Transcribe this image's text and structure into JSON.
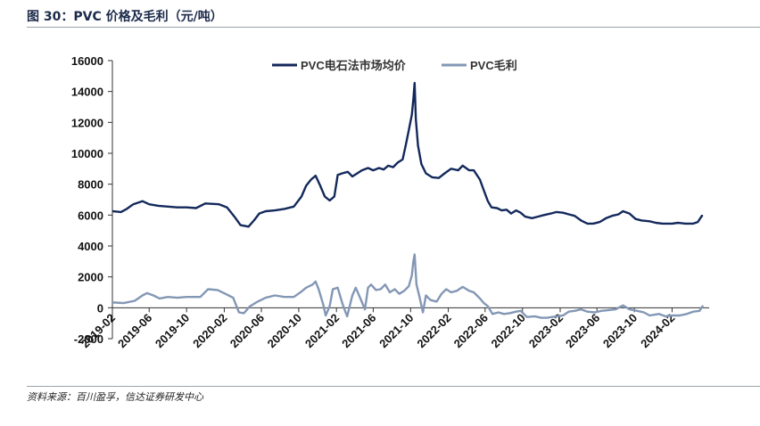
{
  "figure": {
    "title": "图 30：PVC 价格及毛利（元/吨）",
    "source": "资料来源：百川盈孚，信达证券研发中心"
  },
  "colors": {
    "price": "#13295b",
    "margin": "#8397b5",
    "axis": "#333333"
  },
  "chart_data": {
    "type": "line",
    "title": "",
    "xlabel": "",
    "ylabel": "",
    "ylim": [
      -2000,
      16000
    ],
    "yticks": [
      "-2000",
      "0",
      "2000",
      "4000",
      "6000",
      "8000",
      "10000",
      "12000",
      "14000",
      "16000"
    ],
    "xlim": [
      "2019-02",
      "2024-06"
    ],
    "xticks": [
      "2019-02",
      "2019-06",
      "2019-10",
      "2020-02",
      "2020-06",
      "2020-10",
      "2021-02",
      "2021-06",
      "2021-10",
      "2022-02",
      "2022-06",
      "2022-10",
      "2023-02",
      "2023-06",
      "2023-10",
      "2024-02"
    ],
    "legend": "top-center",
    "series": [
      {
        "name": "PVC电石法市场均价",
        "points": [
          [
            "2019-02-01",
            6250
          ],
          [
            "2019-03-01",
            6200
          ],
          [
            "2019-03-20",
            6400
          ],
          [
            "2019-04-10",
            6700
          ],
          [
            "2019-05-10",
            6900
          ],
          [
            "2019-06-01",
            6700
          ],
          [
            "2019-07-01",
            6600
          ],
          [
            "2019-08-01",
            6550
          ],
          [
            "2019-09-01",
            6500
          ],
          [
            "2019-10-01",
            6500
          ],
          [
            "2019-11-01",
            6450
          ],
          [
            "2019-12-01",
            6750
          ],
          [
            "2020-01-15",
            6700
          ],
          [
            "2020-02-10",
            6500
          ],
          [
            "2020-03-05",
            5900
          ],
          [
            "2020-03-25",
            5350
          ],
          [
            "2020-04-20",
            5250
          ],
          [
            "2020-05-10",
            5700
          ],
          [
            "2020-05-25",
            6100
          ],
          [
            "2020-06-15",
            6250
          ],
          [
            "2020-07-15",
            6300
          ],
          [
            "2020-08-15",
            6400
          ],
          [
            "2020-09-15",
            6550
          ],
          [
            "2020-10-10",
            7200
          ],
          [
            "2020-10-25",
            7900
          ],
          [
            "2020-11-10",
            8300
          ],
          [
            "2020-11-25",
            8550
          ],
          [
            "2020-12-10",
            7900
          ],
          [
            "2020-12-25",
            7200
          ],
          [
            "2021-01-10",
            6950
          ],
          [
            "2021-01-25",
            7200
          ],
          [
            "2021-02-05",
            8600
          ],
          [
            "2021-02-20",
            8700
          ],
          [
            "2021-03-10",
            8800
          ],
          [
            "2021-03-25",
            8500
          ],
          [
            "2021-04-10",
            8700
          ],
          [
            "2021-04-25",
            8900
          ],
          [
            "2021-05-15",
            9050
          ],
          [
            "2021-06-01",
            8900
          ],
          [
            "2021-06-20",
            9050
          ],
          [
            "2021-07-05",
            8950
          ],
          [
            "2021-07-20",
            9200
          ],
          [
            "2021-08-05",
            9100
          ],
          [
            "2021-08-20",
            9400
          ],
          [
            "2021-09-05",
            9600
          ],
          [
            "2021-09-15",
            10500
          ],
          [
            "2021-09-25",
            11500
          ],
          [
            "2021-10-05",
            12500
          ],
          [
            "2021-10-10",
            13500
          ],
          [
            "2021-10-14",
            14550
          ],
          [
            "2021-10-18",
            12200
          ],
          [
            "2021-10-25",
            10500
          ],
          [
            "2021-11-05",
            9300
          ],
          [
            "2021-11-20",
            8700
          ],
          [
            "2021-12-10",
            8450
          ],
          [
            "2022-01-01",
            8400
          ],
          [
            "2022-01-20",
            8700
          ],
          [
            "2022-02-10",
            9000
          ],
          [
            "2022-03-05",
            8900
          ],
          [
            "2022-03-20",
            9200
          ],
          [
            "2022-04-10",
            8900
          ],
          [
            "2022-04-25",
            8900
          ],
          [
            "2022-05-15",
            8300
          ],
          [
            "2022-05-28",
            7600
          ],
          [
            "2022-06-10",
            6900
          ],
          [
            "2022-06-22",
            6500
          ],
          [
            "2022-07-10",
            6450
          ],
          [
            "2022-07-25",
            6300
          ],
          [
            "2022-08-10",
            6350
          ],
          [
            "2022-08-25",
            6100
          ],
          [
            "2022-09-10",
            6300
          ],
          [
            "2022-09-25",
            6150
          ],
          [
            "2022-10-10",
            5900
          ],
          [
            "2022-11-01",
            5800
          ],
          [
            "2022-11-20",
            5900
          ],
          [
            "2022-12-10",
            6000
          ],
          [
            "2023-01-01",
            6100
          ],
          [
            "2023-01-20",
            6200
          ],
          [
            "2023-02-10",
            6150
          ],
          [
            "2023-03-01",
            6050
          ],
          [
            "2023-03-20",
            5950
          ],
          [
            "2023-04-10",
            5650
          ],
          [
            "2023-05-01",
            5450
          ],
          [
            "2023-05-20",
            5450
          ],
          [
            "2023-06-10",
            5550
          ],
          [
            "2023-07-01",
            5800
          ],
          [
            "2023-07-20",
            5950
          ],
          [
            "2023-08-10",
            6050
          ],
          [
            "2023-08-25",
            6250
          ],
          [
            "2023-09-15",
            6100
          ],
          [
            "2023-10-05",
            5750
          ],
          [
            "2023-10-25",
            5650
          ],
          [
            "2023-11-20",
            5600
          ],
          [
            "2023-12-10",
            5500
          ],
          [
            "2024-01-01",
            5450
          ],
          [
            "2024-02-01",
            5450
          ],
          [
            "2024-02-20",
            5500
          ],
          [
            "2024-03-15",
            5450
          ],
          [
            "2024-04-10",
            5450
          ],
          [
            "2024-04-25",
            5550
          ],
          [
            "2024-05-08",
            5950
          ],
          [
            "2024-05-12",
            5950
          ]
        ]
      },
      {
        "name": "PVC毛利",
        "points": [
          [
            "2019-02-01",
            350
          ],
          [
            "2019-03-10",
            300
          ],
          [
            "2019-04-15",
            450
          ],
          [
            "2019-05-10",
            800
          ],
          [
            "2019-05-25",
            950
          ],
          [
            "2019-06-15",
            800
          ],
          [
            "2019-07-05",
            600
          ],
          [
            "2019-08-01",
            700
          ],
          [
            "2019-09-01",
            650
          ],
          [
            "2019-10-01",
            700
          ],
          [
            "2019-11-15",
            700
          ],
          [
            "2019-12-10",
            1200
          ],
          [
            "2020-01-10",
            1150
          ],
          [
            "2020-02-10",
            850
          ],
          [
            "2020-03-01",
            650
          ],
          [
            "2020-03-20",
            -300
          ],
          [
            "2020-04-05",
            -350
          ],
          [
            "2020-04-25",
            100
          ],
          [
            "2020-05-20",
            400
          ],
          [
            "2020-06-15",
            650
          ],
          [
            "2020-07-15",
            800
          ],
          [
            "2020-08-15",
            700
          ],
          [
            "2020-09-15",
            700
          ],
          [
            "2020-10-10",
            1050
          ],
          [
            "2020-10-25",
            1300
          ],
          [
            "2020-11-15",
            1500
          ],
          [
            "2020-11-25",
            1700
          ],
          [
            "2020-12-05",
            1200
          ],
          [
            "2020-12-20",
            200
          ],
          [
            "2020-12-28",
            -500
          ],
          [
            "2021-01-10",
            100
          ],
          [
            "2021-01-20",
            1200
          ],
          [
            "2021-02-05",
            1300
          ],
          [
            "2021-02-20",
            300
          ],
          [
            "2021-03-01",
            -200
          ],
          [
            "2021-03-08",
            -550
          ],
          [
            "2021-03-25",
            800
          ],
          [
            "2021-04-05",
            1300
          ],
          [
            "2021-04-20",
            600
          ],
          [
            "2021-05-05",
            -100
          ],
          [
            "2021-05-15",
            1300
          ],
          [
            "2021-05-25",
            1500
          ],
          [
            "2021-06-10",
            1150
          ],
          [
            "2021-06-25",
            1200
          ],
          [
            "2021-07-10",
            1500
          ],
          [
            "2021-07-25",
            1000
          ],
          [
            "2021-08-10",
            1200
          ],
          [
            "2021-08-25",
            900
          ],
          [
            "2021-09-10",
            1100
          ],
          [
            "2021-09-25",
            1400
          ],
          [
            "2021-10-05",
            2100
          ],
          [
            "2021-10-10",
            3000
          ],
          [
            "2021-10-14",
            3450
          ],
          [
            "2021-10-20",
            1500
          ],
          [
            "2021-10-30",
            700
          ],
          [
            "2021-11-10",
            -300
          ],
          [
            "2021-11-20",
            800
          ],
          [
            "2021-12-05",
            500
          ],
          [
            "2021-12-25",
            400
          ],
          [
            "2022-01-10",
            900
          ],
          [
            "2022-01-25",
            1200
          ],
          [
            "2022-02-10",
            1000
          ],
          [
            "2022-03-01",
            1100
          ],
          [
            "2022-03-20",
            1350
          ],
          [
            "2022-04-10",
            1100
          ],
          [
            "2022-04-25",
            1000
          ],
          [
            "2022-05-15",
            600
          ],
          [
            "2022-05-28",
            300
          ],
          [
            "2022-06-10",
            100
          ],
          [
            "2022-06-25",
            -400
          ],
          [
            "2022-07-15",
            -300
          ],
          [
            "2022-08-01",
            -400
          ],
          [
            "2022-08-20",
            -350
          ],
          [
            "2022-09-10",
            -250
          ],
          [
            "2022-09-25",
            -200
          ],
          [
            "2022-10-15",
            -600
          ],
          [
            "2022-11-10",
            -550
          ],
          [
            "2022-12-01",
            -650
          ],
          [
            "2022-12-20",
            -650
          ],
          [
            "2023-01-20",
            -550
          ],
          [
            "2023-02-10",
            -500
          ],
          [
            "2023-03-01",
            -250
          ],
          [
            "2023-03-20",
            -200
          ],
          [
            "2023-04-10",
            -100
          ],
          [
            "2023-05-01",
            -250
          ],
          [
            "2023-05-25",
            -300
          ],
          [
            "2023-06-15",
            -200
          ],
          [
            "2023-07-10",
            -150
          ],
          [
            "2023-08-01",
            -100
          ],
          [
            "2023-08-25",
            150
          ],
          [
            "2023-09-15",
            -100
          ],
          [
            "2023-10-10",
            -200
          ],
          [
            "2023-11-01",
            -300
          ],
          [
            "2023-11-20",
            -500
          ],
          [
            "2023-12-20",
            -400
          ],
          [
            "2024-01-10",
            -550
          ],
          [
            "2024-02-01",
            -500
          ],
          [
            "2024-02-25",
            -500
          ],
          [
            "2024-03-20",
            -400
          ],
          [
            "2024-04-10",
            -250
          ],
          [
            "2024-05-01",
            -200
          ],
          [
            "2024-05-12",
            150
          ]
        ]
      }
    ]
  }
}
